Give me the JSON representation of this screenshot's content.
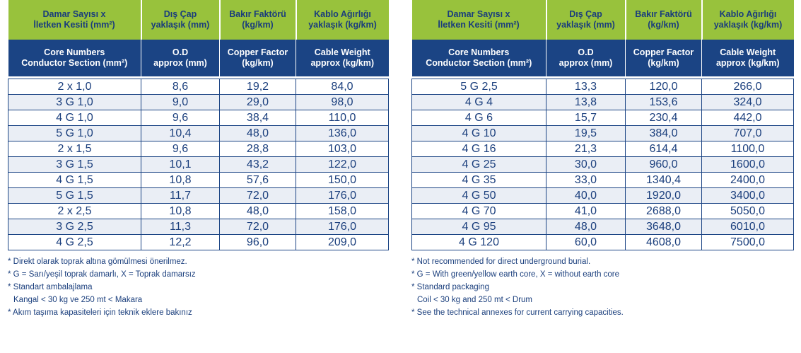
{
  "left": {
    "headers_tr": [
      [
        "Damar Sayısı x",
        "İletken Kesiti (mm²)"
      ],
      [
        "Dış Çap",
        "yaklaşık (mm)"
      ],
      [
        "Bakır Faktörü",
        "(kg/km)"
      ],
      [
        "Kablo Ağırlığı",
        "yaklaşık (kg/km)"
      ]
    ],
    "headers_en": [
      [
        "Core Numbers",
        "Conductor Section (mm²)"
      ],
      [
        "O.D",
        "approx (mm)"
      ],
      [
        "Copper Factor",
        "(kg/km)"
      ],
      [
        "Cable Weight",
        "approx (kg/km)"
      ]
    ],
    "rows": [
      [
        "2 x 1,0",
        "8,6",
        "19,2",
        "84,0"
      ],
      [
        "3 G 1,0",
        "9,0",
        "29,0",
        "98,0"
      ],
      [
        "4 G 1,0",
        "9,6",
        "38,4",
        "110,0"
      ],
      [
        "5 G 1,0",
        "10,4",
        "48,0",
        "136,0"
      ],
      [
        "2 x 1,5",
        "9,6",
        "28,8",
        "103,0"
      ],
      [
        "3 G 1,5",
        "10,1",
        "43,2",
        "122,0"
      ],
      [
        "4 G 1,5",
        "10,8",
        "57,6",
        "150,0"
      ],
      [
        "5 G 1,5",
        "11,7",
        "72,0",
        "176,0"
      ],
      [
        "2 x 2,5",
        "10,8",
        "48,0",
        "158,0"
      ],
      [
        "3 G 2,5",
        "11,3",
        "72,0",
        "176,0"
      ],
      [
        "4 G 2,5",
        "12,2",
        "96,0",
        "209,0"
      ]
    ],
    "notes": [
      "* Direkt olarak toprak altına gömülmesi önerilmez.",
      "* G = Sarı/yeşil toprak damarlı, X = Toprak damarsız",
      "* Standart ambalajlama",
      "Kangal < 30 kg ve 250 mt < Makara",
      "* Akım taşıma kapasiteleri için teknik eklere bakınız"
    ]
  },
  "right": {
    "headers_tr": [
      [
        "Damar Sayısı x",
        "İletken Kesiti (mm²)"
      ],
      [
        "Dış Çap",
        "yaklaşık (mm)"
      ],
      [
        "Bakır Faktörü",
        "(kg/km)"
      ],
      [
        "Kablo Ağırlığı",
        "yaklaşık (kg/km)"
      ]
    ],
    "headers_en": [
      [
        "Core Numbers",
        "Conductor Section (mm²)"
      ],
      [
        "O.D",
        "approx (mm)"
      ],
      [
        "Copper Factor",
        "(kg/km)"
      ],
      [
        "Cable Weight",
        "approx (kg/km)"
      ]
    ],
    "rows": [
      [
        "5 G 2,5",
        "13,3",
        "120,0",
        "266,0"
      ],
      [
        "4 G 4",
        "13,8",
        "153,6",
        "324,0"
      ],
      [
        "4 G 6",
        "15,7",
        "230,4",
        "442,0"
      ],
      [
        "4 G 10",
        "19,5",
        "384,0",
        "707,0"
      ],
      [
        "4 G 16",
        "21,3",
        "614,4",
        "1100,0"
      ],
      [
        "4 G 25",
        "30,0",
        "960,0",
        "1600,0"
      ],
      [
        "4 G 35",
        "33,0",
        "1340,4",
        "2400,0"
      ],
      [
        "4 G 50",
        "40,0",
        "1920,0",
        "3400,0"
      ],
      [
        "4 G 70",
        "41,0",
        "2688,0",
        "5050,0"
      ],
      [
        "4 G 95",
        "48,0",
        "3648,0",
        "6010,0"
      ],
      [
        "4 G 120",
        "60,0",
        "4608,0",
        "7500,0"
      ]
    ],
    "notes": [
      "* Not recommended for direct underground burial.",
      "* G = With green/yellow earth core, X = without earth core",
      "* Standard packaging",
      "Coil < 30 kg and 250 mt < Drum",
      "* See the technical annexes for current carrying capacities."
    ]
  }
}
